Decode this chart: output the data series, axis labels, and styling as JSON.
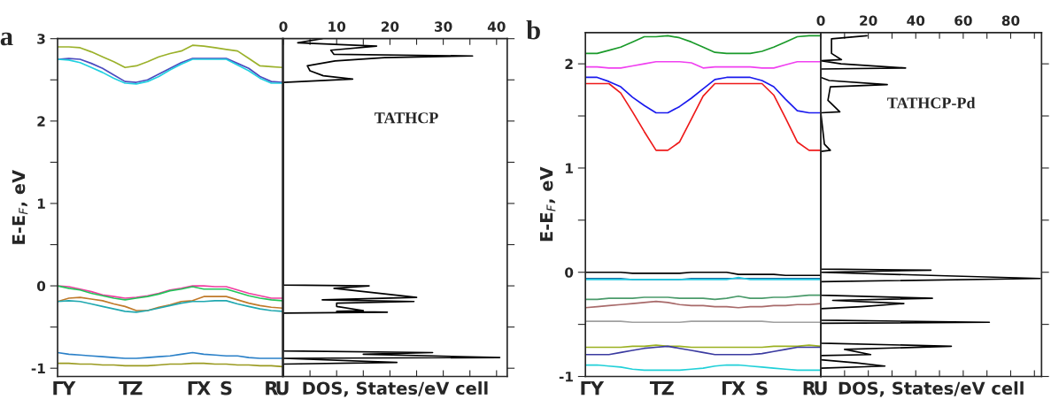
{
  "chart_data": [
    {
      "type": "line",
      "title": "a",
      "ylabel": "E-E$_{F}$, eV",
      "ylim": [
        -1.1,
        3
      ],
      "categories": [
        "Γ",
        "Y",
        null,
        null,
        null,
        null,
        "T",
        "Z",
        null,
        null,
        null,
        null,
        "Γ",
        "X",
        null,
        "S",
        null,
        null,
        null,
        "R",
        "U"
      ],
      "yticks": [
        -1,
        {
          "value": -0.5,
          "label": null
        },
        0,
        {
          "value": 0.5,
          "label": null
        },
        1,
        {
          "value": 1.5,
          "label": null
        },
        2,
        {
          "value": 2.5,
          "label": null
        },
        3
      ],
      "series": [
        {
          "color": "#9bb12a",
          "values": [
            2.9,
            2.9,
            2.89,
            2.84,
            2.78,
            2.72,
            2.65,
            2.67,
            2.72,
            2.78,
            2.82,
            2.85,
            2.92,
            2.91,
            2.89,
            2.87,
            2.85,
            2.76,
            2.67,
            2.66,
            2.65
          ]
        },
        {
          "color": "#4b4bbf",
          "values": [
            2.75,
            2.76,
            2.75,
            2.7,
            2.64,
            2.56,
            2.48,
            2.47,
            2.5,
            2.57,
            2.64,
            2.71,
            2.76,
            2.76,
            2.76,
            2.76,
            2.7,
            2.64,
            2.54,
            2.48,
            2.47
          ]
        },
        {
          "color": "#20d0e0",
          "values": [
            2.75,
            2.74,
            2.71,
            2.65,
            2.59,
            2.52,
            2.46,
            2.45,
            2.48,
            2.54,
            2.62,
            2.69,
            2.75,
            2.75,
            2.75,
            2.75,
            2.68,
            2.61,
            2.52,
            2.46,
            2.46
          ]
        },
        {
          "color": "#f03ca0",
          "values": [
            0.0,
            -0.01,
            -0.04,
            -0.07,
            -0.11,
            -0.13,
            -0.15,
            -0.14,
            -0.12,
            -0.09,
            -0.05,
            -0.03,
            0.0,
            0.0,
            -0.01,
            -0.01,
            -0.05,
            -0.09,
            -0.12,
            -0.15,
            -0.15
          ]
        },
        {
          "color": "#22c45a",
          "values": [
            0.0,
            -0.03,
            -0.05,
            -0.09,
            -0.12,
            -0.15,
            -0.17,
            -0.15,
            -0.13,
            -0.1,
            -0.06,
            -0.04,
            -0.01,
            -0.04,
            -0.04,
            -0.04,
            -0.08,
            -0.12,
            -0.15,
            -0.17,
            -0.18
          ]
        },
        {
          "color": "#c07a2a",
          "values": [
            -0.19,
            -0.15,
            -0.14,
            -0.16,
            -0.18,
            -0.22,
            -0.25,
            -0.3,
            -0.3,
            -0.26,
            -0.23,
            -0.19,
            -0.18,
            -0.13,
            -0.13,
            -0.13,
            -0.17,
            -0.21,
            -0.24,
            -0.26,
            -0.27
          ]
        },
        {
          "color": "#20a8b0",
          "values": [
            -0.19,
            -0.18,
            -0.19,
            -0.22,
            -0.25,
            -0.28,
            -0.31,
            -0.32,
            -0.3,
            -0.27,
            -0.24,
            -0.21,
            -0.19,
            -0.19,
            -0.18,
            -0.18,
            -0.22,
            -0.25,
            -0.28,
            -0.3,
            -0.31
          ]
        },
        {
          "color": "#2a80c8",
          "values": [
            -0.81,
            -0.83,
            -0.84,
            -0.85,
            -0.86,
            -0.87,
            -0.88,
            -0.88,
            -0.87,
            -0.86,
            -0.85,
            -0.83,
            -0.81,
            -0.83,
            -0.84,
            -0.85,
            -0.85,
            -0.87,
            -0.88,
            -0.88,
            -0.88
          ]
        },
        {
          "color": "#9a9a20",
          "values": [
            -0.94,
            -0.94,
            -0.95,
            -0.95,
            -0.96,
            -0.96,
            -0.97,
            -0.97,
            -0.97,
            -0.96,
            -0.95,
            -0.95,
            -0.94,
            -0.94,
            -0.95,
            -0.95,
            -0.96,
            -0.96,
            -0.97,
            -0.97,
            -0.98
          ]
        }
      ]
    },
    {
      "type": "line",
      "xlabel": "DOS, States/eV cell",
      "annotations": [
        "TATHCP"
      ],
      "tick_labels": "x",
      "xlim": [
        0,
        42
      ],
      "ylim": [
        -1.1,
        3
      ],
      "xticks": [
        0,
        {
          "value": 5,
          "label": null
        },
        10,
        {
          "value": 15,
          "label": null
        },
        20,
        {
          "value": 25,
          "label": null
        },
        30,
        {
          "value": 35,
          "label": null
        },
        40
      ],
      "yticks": [
        -1,
        {
          "value": -0.5,
          "label": null
        },
        0,
        {
          "value": 0.5,
          "label": null
        },
        1,
        {
          "value": 1.5,
          "label": null
        },
        2,
        {
          "value": 2.5,
          "label": null
        },
        3
      ],
      "series": [
        {
          "color": "#000000",
          "x": [
            7.3,
            2.7,
            17.5,
            8.9,
            9.5,
            35.5,
            19,
            9.7,
            4.5,
            5.0,
            7.5,
            13,
            0,
            0,
            16.1,
            9.5,
            25,
            7.3,
            24.5,
            10,
            10,
            15,
            10,
            19.5,
            0,
            0,
            28,
            15,
            40.6,
            0,
            21.3,
            0,
            0
          ],
          "values": [
            3.0,
            2.95,
            2.91,
            2.86,
            2.81,
            2.79,
            2.77,
            2.73,
            2.67,
            2.61,
            2.55,
            2.51,
            2.47,
            0.01,
            0.0,
            -0.03,
            -0.14,
            -0.17,
            -0.19,
            -0.21,
            -0.25,
            -0.3,
            -0.31,
            -0.32,
            -0.33,
            -0.79,
            -0.81,
            -0.83,
            -0.87,
            -0.88,
            -0.93,
            -0.95,
            -1.1
          ]
        }
      ]
    },
    {
      "type": "line",
      "title": "b",
      "ylabel": "E-E$_{F}$, eV",
      "ylim": [
        -1,
        2.3
      ],
      "categories": [
        "Γ",
        "Y",
        null,
        null,
        null,
        null,
        "T",
        "Z",
        null,
        null,
        null,
        null,
        "Γ",
        "X",
        null,
        "S",
        null,
        null,
        null,
        "R",
        "U"
      ],
      "yticks": [
        -1,
        {
          "value": -0.5,
          "label": null
        },
        0,
        {
          "value": 0.5,
          "label": null
        },
        1,
        {
          "value": 1.5,
          "label": null
        },
        2
      ],
      "series": [
        {
          "color": "#1a9a2a",
          "values": [
            2.1,
            2.1,
            2.13,
            2.16,
            2.21,
            2.26,
            2.26,
            2.27,
            2.25,
            2.21,
            2.16,
            2.11,
            2.1,
            2.1,
            2.1,
            2.12,
            2.16,
            2.21,
            2.26,
            2.27,
            2.27
          ]
        },
        {
          "color": "#f040f0",
          "values": [
            1.97,
            1.97,
            1.96,
            1.96,
            1.98,
            2.0,
            2.02,
            2.02,
            2.02,
            2.01,
            1.96,
            1.97,
            1.97,
            1.97,
            1.97,
            1.96,
            1.96,
            1.99,
            2.02,
            2.02,
            2.02
          ]
        },
        {
          "color": "#1a1aee",
          "values": [
            1.87,
            1.87,
            1.83,
            1.78,
            1.68,
            1.6,
            1.53,
            1.53,
            1.59,
            1.67,
            1.76,
            1.85,
            1.87,
            1.87,
            1.87,
            1.84,
            1.78,
            1.66,
            1.55,
            1.53,
            1.53
          ]
        },
        {
          "color": "#ee1a1a",
          "values": [
            1.81,
            1.81,
            1.81,
            1.72,
            1.54,
            1.35,
            1.17,
            1.17,
            1.25,
            1.47,
            1.69,
            1.81,
            1.81,
            1.81,
            1.81,
            1.81,
            1.7,
            1.48,
            1.25,
            1.17,
            1.17
          ]
        },
        {
          "color": "#000000",
          "values": [
            0.0,
            0.0,
            0.0,
            0.0,
            -0.01,
            -0.01,
            -0.01,
            -0.01,
            -0.01,
            0.0,
            0.0,
            0.0,
            0.0,
            -0.02,
            -0.02,
            -0.02,
            -0.02,
            -0.03,
            -0.03,
            -0.03,
            -0.03
          ]
        },
        {
          "color": "#1a6aa0",
          "values": [
            -0.06,
            -0.06,
            -0.06,
            -0.06,
            -0.07,
            -0.07,
            -0.07,
            -0.07,
            -0.07,
            -0.06,
            -0.06,
            -0.06,
            -0.06,
            -0.06,
            -0.06,
            -0.06,
            -0.06,
            -0.06,
            -0.06,
            -0.06,
            -0.06
          ]
        },
        {
          "color": "#20c8e0",
          "values": [
            -0.07,
            -0.07,
            -0.07,
            -0.07,
            -0.07,
            -0.07,
            -0.07,
            -0.07,
            -0.07,
            -0.07,
            -0.07,
            -0.07,
            -0.07,
            -0.05,
            -0.07,
            -0.07,
            -0.07,
            -0.07,
            -0.07,
            -0.07,
            -0.07
          ]
        },
        {
          "color": "#4a9a6a",
          "values": [
            -0.26,
            -0.26,
            -0.25,
            -0.25,
            -0.25,
            -0.24,
            -0.24,
            -0.24,
            -0.25,
            -0.25,
            -0.25,
            -0.26,
            -0.25,
            -0.23,
            -0.25,
            -0.25,
            -0.24,
            -0.24,
            -0.23,
            -0.22,
            -0.22
          ]
        },
        {
          "color": "#a86a6a",
          "values": [
            -0.34,
            -0.33,
            -0.32,
            -0.31,
            -0.3,
            -0.29,
            -0.28,
            -0.29,
            -0.31,
            -0.32,
            -0.32,
            -0.33,
            -0.33,
            -0.34,
            -0.33,
            -0.33,
            -0.32,
            -0.32,
            -0.31,
            -0.31,
            -0.3
          ]
        },
        {
          "color": "#a0a0a0",
          "values": [
            -0.47,
            -0.47,
            -0.47,
            -0.47,
            -0.48,
            -0.48,
            -0.48,
            -0.48,
            -0.48,
            -0.47,
            -0.47,
            -0.47,
            -0.47,
            -0.47,
            -0.47,
            -0.47,
            -0.48,
            -0.48,
            -0.48,
            -0.48,
            -0.48
          ]
        },
        {
          "color": "#9ab020",
          "values": [
            -0.72,
            -0.72,
            -0.72,
            -0.72,
            -0.71,
            -0.71,
            -0.7,
            -0.71,
            -0.71,
            -0.72,
            -0.72,
            -0.72,
            -0.72,
            -0.72,
            -0.72,
            -0.72,
            -0.71,
            -0.71,
            -0.71,
            -0.7,
            -0.71
          ]
        },
        {
          "color": "#3a3aa0",
          "values": [
            -0.79,
            -0.79,
            -0.79,
            -0.77,
            -0.75,
            -0.73,
            -0.72,
            -0.71,
            -0.73,
            -0.75,
            -0.77,
            -0.79,
            -0.79,
            -0.79,
            -0.79,
            -0.78,
            -0.76,
            -0.74,
            -0.72,
            -0.72,
            -0.72
          ]
        },
        {
          "color": "#20d0d8",
          "values": [
            -0.89,
            -0.89,
            -0.9,
            -0.91,
            -0.93,
            -0.94,
            -0.94,
            -0.94,
            -0.94,
            -0.93,
            -0.92,
            -0.9,
            -0.89,
            -0.89,
            -0.9,
            -0.91,
            -0.92,
            -0.93,
            -0.94,
            -0.94,
            -0.94
          ]
        }
      ]
    },
    {
      "type": "line",
      "xlabel": "DOS, States/eV cell",
      "annotations": [
        "TATHCP-Pd"
      ],
      "tick_labels": "x",
      "xlim": [
        0,
        93
      ],
      "ylim": [
        -1,
        2.3
      ],
      "xticks": [
        0,
        {
          "value": 10,
          "label": null
        },
        20,
        {
          "value": 30,
          "label": null
        },
        40,
        {
          "value": 50,
          "label": null
        },
        60,
        {
          "value": 70,
          "label": null
        },
        80,
        {
          "value": 90,
          "label": null
        }
      ],
      "yticks": [
        -1,
        {
          "value": -0.5,
          "label": null
        },
        0,
        {
          "value": 0.5,
          "label": null
        },
        1,
        {
          "value": 1.5,
          "label": null
        },
        2
      ],
      "series": [
        {
          "color": "#000000",
          "x": [
            19.4,
            4.5,
            4.5,
            8.7,
            0,
            0,
            8.5,
            35.7,
            0,
            0,
            3.5,
            28,
            4,
            3,
            8,
            0,
            1.5,
            4,
            0,
            0,
            46.4,
            0,
            92.5,
            0,
            0,
            47,
            5,
            35,
            17,
            0,
            0,
            71,
            0,
            0,
            55,
            10,
            21,
            0,
            0,
            15,
            27,
            0,
            0
          ],
          "values": [
            2.27,
            2.24,
            2.1,
            2.04,
            2.03,
            2.03,
            2.0,
            1.96,
            1.95,
            1.87,
            1.84,
            1.8,
            1.78,
            1.65,
            1.54,
            1.53,
            1.23,
            1.17,
            1.16,
            0.03,
            0.02,
            0.0,
            -0.06,
            -0.09,
            -0.22,
            -0.25,
            -0.27,
            -0.3,
            -0.33,
            -0.35,
            -0.46,
            -0.48,
            -0.49,
            -0.68,
            -0.71,
            -0.74,
            -0.79,
            -0.8,
            -0.84,
            -0.87,
            -0.9,
            -0.92,
            -1.0
          ]
        }
      ]
    }
  ]
}
